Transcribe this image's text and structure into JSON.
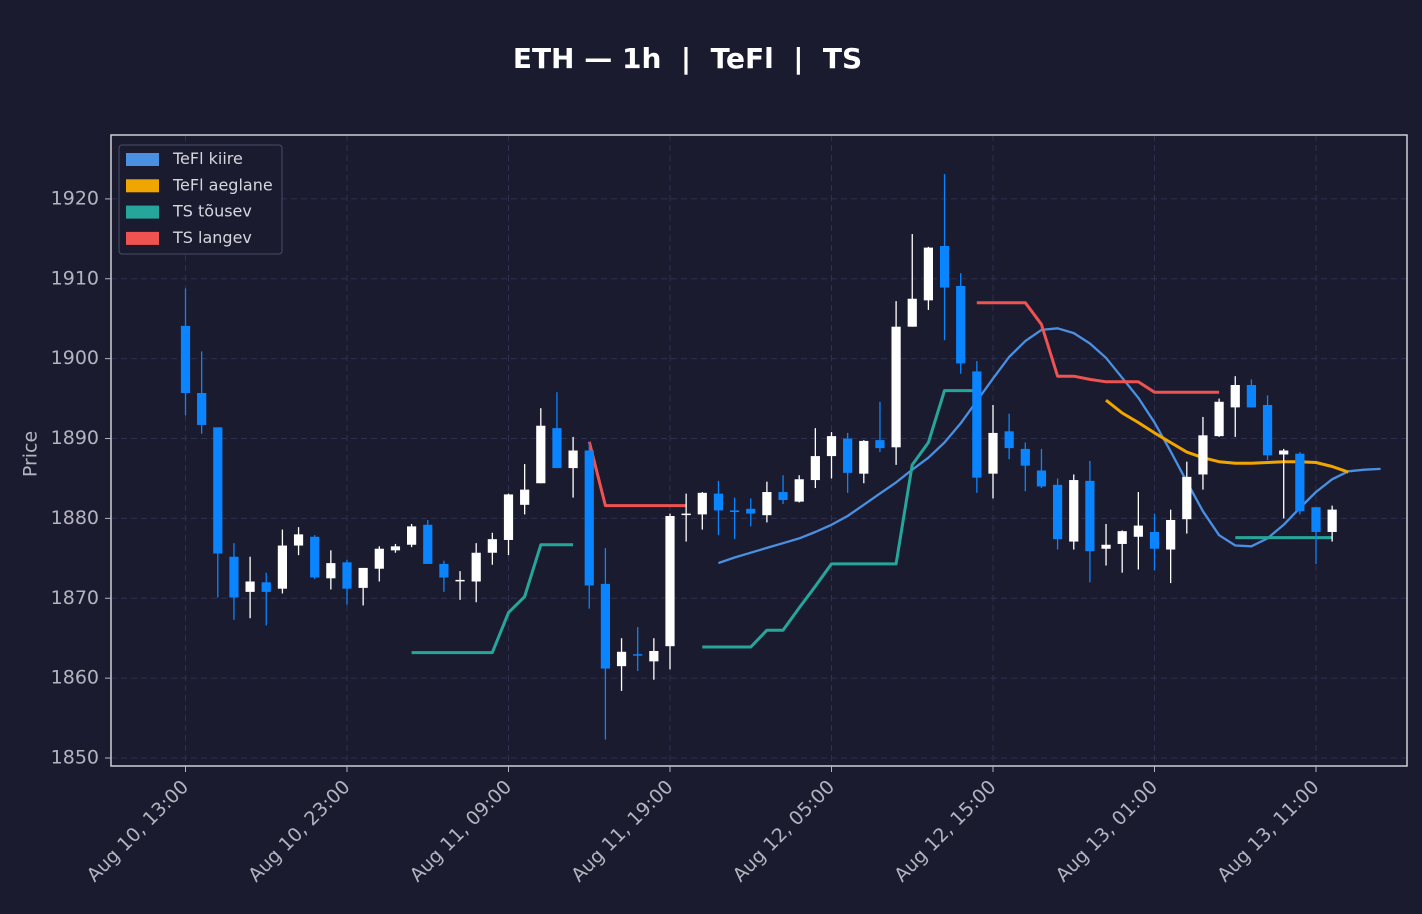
{
  "chart_data": {
    "type": "candlestick",
    "title": "ETH — 1h  |  TeFl  |  TS",
    "ylabel": "Price",
    "xlabel": "",
    "ylim": [
      1849,
      1928
    ],
    "yticks": [
      1850,
      1860,
      1870,
      1880,
      1890,
      1900,
      1910,
      1920
    ],
    "grid": true,
    "legend_position": "top-left",
    "colors": {
      "background": "#1b1b2f",
      "up_candle": "#ffffff",
      "down_candle": "#0a84ff",
      "grid": "#2e3150",
      "frame": "#d0d0d8",
      "tefl_fast": "#4a90e2",
      "tefl_slow": "#f0a500",
      "ts_rising": "#26a69a",
      "ts_falling": "#ef5350"
    },
    "x_ticks": [
      {
        "index": 0,
        "label": "Aug 10, 13:00"
      },
      {
        "index": 10,
        "label": "Aug 10, 23:00"
      },
      {
        "index": 20,
        "label": "Aug 11, 09:00"
      },
      {
        "index": 30,
        "label": "Aug 11, 19:00"
      },
      {
        "index": 40,
        "label": "Aug 12, 05:00"
      },
      {
        "index": 50,
        "label": "Aug 12, 15:00"
      },
      {
        "index": 60,
        "label": "Aug 13, 01:00"
      },
      {
        "index": 70,
        "label": "Aug 13, 11:00"
      }
    ],
    "candles": [
      [
        1904.1,
        1908.8,
        1892.9,
        1895.7
      ],
      [
        1895.7,
        1900.9,
        1890.6,
        1891.7
      ],
      [
        1891.4,
        1891.4,
        1870.1,
        1875.6
      ],
      [
        1875.2,
        1876.9,
        1867.3,
        1870.1
      ],
      [
        1870.8,
        1875.2,
        1867.5,
        1872.1
      ],
      [
        1872.0,
        1873.2,
        1866.6,
        1870.8
      ],
      [
        1871.2,
        1878.6,
        1870.6,
        1876.6
      ],
      [
        1876.6,
        1878.9,
        1875.4,
        1878.0
      ],
      [
        1877.7,
        1877.9,
        1872.4,
        1872.6
      ],
      [
        1872.5,
        1876.0,
        1871.1,
        1874.4
      ],
      [
        1874.5,
        1874.8,
        1869.2,
        1871.2
      ],
      [
        1871.3,
        1873.8,
        1869.1,
        1873.8
      ],
      [
        1873.7,
        1876.5,
        1872.1,
        1876.2
      ],
      [
        1876.0,
        1876.8,
        1875.7,
        1876.5
      ],
      [
        1876.7,
        1879.3,
        1876.4,
        1879.0
      ],
      [
        1879.2,
        1879.8,
        1874.3,
        1874.3
      ],
      [
        1874.3,
        1874.7,
        1870.8,
        1872.6
      ],
      [
        1872.2,
        1873.4,
        1869.8,
        1872.3
      ],
      [
        1872.1,
        1876.9,
        1869.5,
        1875.7
      ],
      [
        1875.7,
        1878.2,
        1874.2,
        1877.4
      ],
      [
        1877.3,
        1883.1,
        1875.4,
        1883.0
      ],
      [
        1881.7,
        1886.8,
        1880.5,
        1883.6
      ],
      [
        1884.4,
        1893.8,
        1884.4,
        1891.6
      ],
      [
        1891.3,
        1895.8,
        1886.3,
        1886.3
      ],
      [
        1886.3,
        1890.2,
        1882.6,
        1888.5
      ],
      [
        1888.5,
        1889.6,
        1868.7,
        1871.6
      ],
      [
        1871.8,
        1876.3,
        1852.3,
        1861.2
      ],
      [
        1861.5,
        1865.0,
        1858.4,
        1863.3
      ],
      [
        1863.0,
        1866.4,
        1860.9,
        1862.9
      ],
      [
        1862.1,
        1865.0,
        1859.8,
        1863.4
      ],
      [
        1864.0,
        1880.6,
        1861.1,
        1880.3
      ],
      [
        1880.6,
        1883.1,
        1877.1,
        1880.6
      ],
      [
        1880.5,
        1883.3,
        1878.6,
        1883.2
      ],
      [
        1883.1,
        1884.7,
        1877.9,
        1881.0
      ],
      [
        1881.0,
        1882.6,
        1877.4,
        1880.8
      ],
      [
        1881.2,
        1882.5,
        1879.0,
        1880.6
      ],
      [
        1880.4,
        1884.6,
        1879.5,
        1883.3
      ],
      [
        1883.3,
        1885.4,
        1881.8,
        1882.3
      ],
      [
        1882.1,
        1885.4,
        1882.0,
        1884.9
      ],
      [
        1884.8,
        1891.3,
        1883.8,
        1887.8
      ],
      [
        1887.8,
        1890.8,
        1885.0,
        1890.3
      ],
      [
        1890.0,
        1890.7,
        1883.2,
        1885.7
      ],
      [
        1885.6,
        1889.8,
        1884.4,
        1889.7
      ],
      [
        1889.8,
        1894.6,
        1888.3,
        1888.8
      ],
      [
        1888.9,
        1907.2,
        1886.7,
        1904.0
      ],
      [
        1904.0,
        1915.6,
        1904.0,
        1907.5
      ],
      [
        1907.3,
        1914.0,
        1906.1,
        1913.9
      ],
      [
        1914.1,
        1923.1,
        1902.3,
        1908.9
      ],
      [
        1909.1,
        1910.7,
        1898.1,
        1899.4
      ],
      [
        1898.4,
        1899.7,
        1883.2,
        1885.1
      ],
      [
        1885.6,
        1894.2,
        1882.5,
        1890.7
      ],
      [
        1890.9,
        1893.1,
        1887.4,
        1888.8
      ],
      [
        1888.7,
        1889.5,
        1883.4,
        1886.6
      ],
      [
        1886.0,
        1888.7,
        1883.8,
        1884.0
      ],
      [
        1884.2,
        1885.0,
        1876.1,
        1877.4
      ],
      [
        1877.1,
        1885.5,
        1876.1,
        1884.8
      ],
      [
        1884.7,
        1887.2,
        1872.0,
        1875.9
      ],
      [
        1876.2,
        1879.3,
        1874.1,
        1876.7
      ],
      [
        1876.8,
        1878.5,
        1873.2,
        1878.4
      ],
      [
        1877.7,
        1883.3,
        1873.6,
        1879.1
      ],
      [
        1878.3,
        1880.6,
        1873.5,
        1876.2
      ],
      [
        1876.1,
        1881.1,
        1871.9,
        1879.8
      ],
      [
        1879.9,
        1887.1,
        1878.1,
        1885.2
      ],
      [
        1885.5,
        1892.7,
        1883.6,
        1890.4
      ],
      [
        1890.3,
        1895.0,
        1890.2,
        1894.6
      ],
      [
        1893.9,
        1897.8,
        1890.2,
        1896.7
      ],
      [
        1896.7,
        1897.4,
        1893.9,
        1893.9
      ],
      [
        1894.2,
        1895.4,
        1887.3,
        1887.9
      ],
      [
        1888.0,
        1888.7,
        1880.0,
        1888.5
      ],
      [
        1888.1,
        1888.3,
        1880.5,
        1880.9
      ],
      [
        1881.4,
        1881.4,
        1874.3,
        1878.3
      ],
      [
        1878.3,
        1881.6,
        1877.1,
        1881.1
      ]
    ],
    "series": [
      {
        "name": "TeFl kiire",
        "start_index": 33,
        "values": [
          1874.4,
          1875.1,
          1875.7,
          1876.3,
          1876.9,
          1877.5,
          1878.3,
          1879.2,
          1880.3,
          1881.7,
          1883.1,
          1884.5,
          1886.1,
          1887.6,
          1889.5,
          1891.9,
          1894.7,
          1897.5,
          1900.2,
          1902.2,
          1903.6,
          1903.8,
          1903.2,
          1901.9,
          1900.1,
          1897.6,
          1895.1,
          1892.0,
          1888.4,
          1884.6,
          1880.9,
          1877.9,
          1876.6,
          1876.5,
          1877.5,
          1879.2,
          1881.3,
          1883.3,
          1884.9,
          1885.9,
          1886.1,
          1886.2
        ]
      },
      {
        "name": "TeFl aeglane",
        "start_index": 57,
        "values": [
          1894.8,
          1893.2,
          1892.0,
          1890.7,
          1889.5,
          1888.3,
          1887.6,
          1887.1,
          1886.9,
          1886.9,
          1887.0,
          1887.1,
          1887.1,
          1887.0,
          1886.5,
          1885.8
        ]
      },
      {
        "name": "TS tõusev",
        "start_index": 14,
        "values": [
          1863.2,
          1863.2,
          1863.2,
          1863.2,
          1863.2,
          1863.2,
          1868.2,
          1870.2,
          1876.7,
          1876.7,
          1876.7
        ]
      },
      {
        "name": "TS tõusev",
        "start_index": 32,
        "values": [
          1863.9,
          1863.9,
          1863.9,
          1863.9,
          1866.0,
          1866.0,
          1868.8,
          1871.5,
          1874.3,
          1874.3,
          1874.3,
          1874.3,
          1874.3,
          1886.7,
          1889.5,
          1896.0,
          1896.0,
          1896.0
        ]
      },
      {
        "name": "TS tõusev",
        "start_index": 65,
        "values": [
          1877.6,
          1877.6,
          1877.6,
          1877.6,
          1877.6,
          1877.6,
          1877.6
        ]
      },
      {
        "name": "TS langev",
        "start_index": 25,
        "values": [
          1889.6,
          1881.6,
          1881.6,
          1881.6,
          1881.6,
          1881.6,
          1881.6
        ]
      },
      {
        "name": "TS langev",
        "start_index": 49,
        "values": [
          1907.0,
          1907.0,
          1907.0,
          1907.0,
          1904.3,
          1897.8,
          1897.8,
          1897.4,
          1897.1,
          1897.1,
          1897.1,
          1895.8,
          1895.8,
          1895.8,
          1895.8,
          1895.8
        ]
      }
    ],
    "legend": [
      {
        "label": "TeFl kiire",
        "color": "#4a90e2"
      },
      {
        "label": "TeFl aeglane",
        "color": "#f0a500"
      },
      {
        "label": "TS tõusev",
        "color": "#26a69a"
      },
      {
        "label": "TS langev",
        "color": "#ef5350"
      }
    ]
  }
}
